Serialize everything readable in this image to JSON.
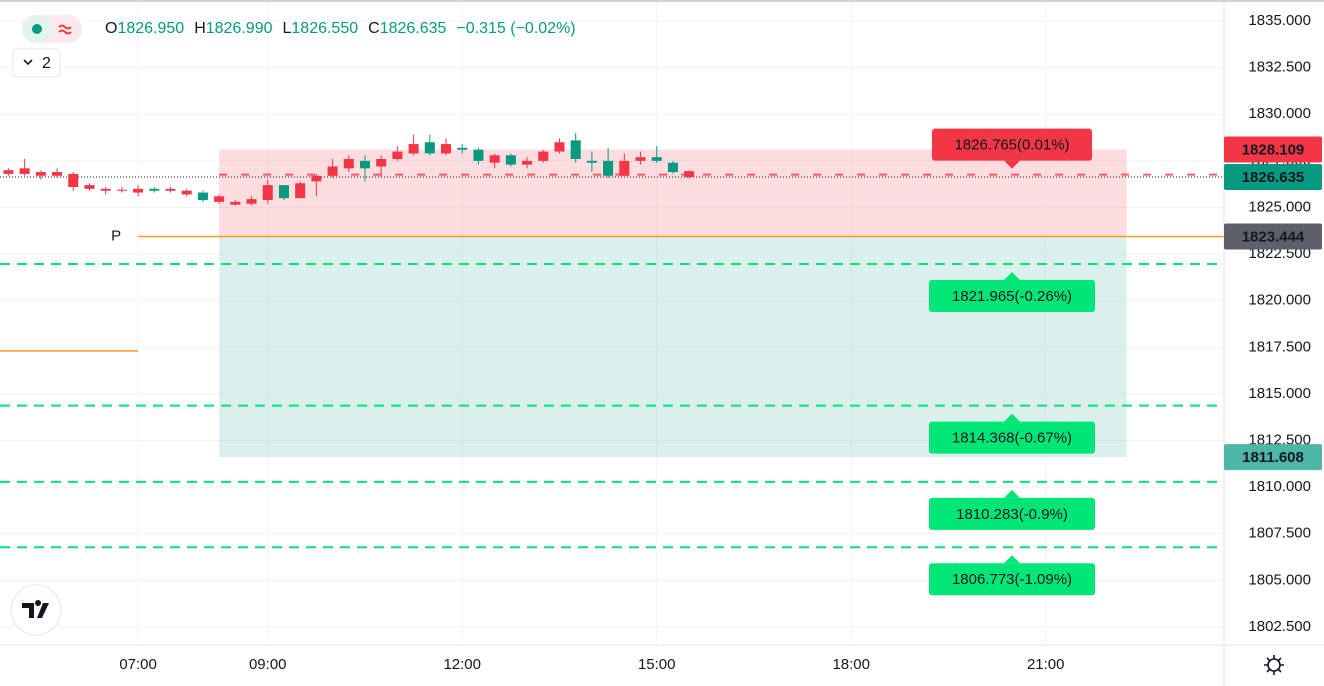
{
  "chart_data": {
    "type": "candlestick",
    "header": {
      "labels": [
        "O",
        "H",
        "L",
        "C"
      ],
      "value_labels": [
        "1826.950",
        "1826.990",
        "1826.550",
        "1826.635"
      ],
      "change": "−0.315 (−0.02%)",
      "interval": "2"
    },
    "x": [
      5,
      5.25,
      5.5,
      5.75,
      6,
      6.25,
      6.5,
      6.75,
      7,
      7.25,
      7.5,
      7.75,
      8,
      8.25,
      8.5,
      8.75,
      9,
      9.25,
      9.5,
      9.75,
      10,
      10.25,
      10.5,
      10.75,
      11,
      11.25,
      11.5,
      11.75,
      12,
      12.25,
      12.5,
      12.75,
      13,
      13.25,
      13.5,
      13.75,
      14,
      14.25,
      14.5,
      14.75,
      15,
      15.25,
      15.5
    ],
    "open": [
      1827.0,
      1827.1,
      1826.9,
      1826.9,
      1826.8,
      1826.2,
      1826.0,
      1825.95,
      1826.0,
      1825.9,
      1826.0,
      1825.9,
      1825.4,
      1825.6,
      1825.3,
      1825.45,
      1826.2,
      1825.5,
      1826.3,
      1826.7,
      1827.2,
      1827.6,
      1827.1,
      1827.6,
      1828.0,
      1828.4,
      1827.9,
      1828.4,
      1828.1,
      1827.5,
      1827.8,
      1827.3,
      1827.5,
      1828.0,
      1828.5,
      1827.6,
      1827.4,
      1826.7,
      1827.5,
      1827.7,
      1827.5,
      1826.9,
      1826.95
    ],
    "high": [
      1827.1,
      1827.6,
      1827.0,
      1827.1,
      1826.9,
      1826.3,
      1826.1,
      1826.1,
      1826.2,
      1826.1,
      1826.1,
      1826.0,
      1825.9,
      1825.7,
      1825.4,
      1825.6,
      1826.5,
      1826.2,
      1826.4,
      1826.8,
      1827.6,
      1827.8,
      1827.8,
      1827.8,
      1828.3,
      1828.9,
      1828.9,
      1828.7,
      1828.4,
      1828.2,
      1827.9,
      1827.9,
      1827.7,
      1828.1,
      1828.7,
      1829.0,
      1828.0,
      1828.2,
      1827.9,
      1828.0,
      1828.3,
      1827.5,
      1826.99
    ],
    "low": [
      1826.7,
      1826.7,
      1826.5,
      1826.6,
      1825.9,
      1825.9,
      1825.7,
      1825.8,
      1825.6,
      1825.8,
      1825.8,
      1825.6,
      1825.3,
      1825.2,
      1825.1,
      1825.1,
      1825.2,
      1825.4,
      1825.5,
      1825.6,
      1826.6,
      1826.9,
      1826.4,
      1826.6,
      1827.5,
      1827.8,
      1827.8,
      1827.8,
      1827.9,
      1827.3,
      1827.1,
      1827.2,
      1827.1,
      1827.4,
      1827.9,
      1827.4,
      1826.9,
      1826.6,
      1826.7,
      1827.3,
      1827.4,
      1826.8,
      1826.55
    ],
    "close": [
      1826.8,
      1826.8,
      1826.7,
      1826.7,
      1826.1,
      1826.0,
      1825.9,
      1825.9,
      1825.8,
      1826.0,
      1825.9,
      1825.7,
      1825.8,
      1825.3,
      1825.15,
      1825.2,
      1825.4,
      1826.2,
      1825.5,
      1826.4,
      1826.7,
      1827.1,
      1827.5,
      1827.2,
      1827.6,
      1827.9,
      1828.5,
      1827.9,
      1828.2,
      1828.1,
      1827.4,
      1827.8,
      1827.3,
      1827.5,
      1828.0,
      1828.6,
      1827.5,
      1827.5,
      1826.7,
      1827.5,
      1827.7,
      1827.4,
      1826.635
    ],
    "up_color": "#089981",
    "down_color": "#f23645",
    "xlim": [
      4.87,
      23.75
    ],
    "ylim": [
      1801.53,
      1836.13
    ],
    "xticks": [
      {
        "value": 7,
        "label": "07:00"
      },
      {
        "value": 9,
        "label": "09:00"
      },
      {
        "value": 12,
        "label": "12:00"
      },
      {
        "value": 15,
        "label": "15:00"
      },
      {
        "value": 18,
        "label": "18:00"
      },
      {
        "value": 21,
        "label": "21:00"
      }
    ],
    "yticks": [
      {
        "value": 1802.5,
        "label": "1802.500"
      },
      {
        "value": 1805,
        "label": "1805.000"
      },
      {
        "value": 1807.5,
        "label": "1807.500"
      },
      {
        "value": 1810,
        "label": "1810.000"
      },
      {
        "value": 1812.5,
        "label": "1812.500"
      },
      {
        "value": 1815,
        "label": "1815.000"
      },
      {
        "value": 1817.5,
        "label": "1817.500"
      },
      {
        "value": 1820,
        "label": "1820.000"
      },
      {
        "value": 1822.5,
        "label": "1822.500"
      },
      {
        "value": 1825,
        "label": "1825.000"
      },
      {
        "value": 1827.5,
        "label": "1827.500"
      },
      {
        "value": 1830,
        "label": "1830.000"
      },
      {
        "value": 1832.5,
        "label": "1832.500"
      },
      {
        "value": 1835,
        "label": "1835.000"
      }
    ],
    "grid": true,
    "position": {
      "start": 8.25,
      "end": 22.25,
      "stop": 1828.109,
      "entry": 1823.444,
      "target": 1811.608,
      "stop_color": "#f23645",
      "entry_color": "#5d606b",
      "target_color": "#4db6a4"
    },
    "pivot": {
      "label": "P",
      "start": 7,
      "color": "#f59a23",
      "previous": 1817.3
    },
    "levels": [
      {
        "value": 1826.765,
        "label": "1826.765(0.01%)",
        "color": "#f23645",
        "start": 8.25
      },
      {
        "value": 1821.965,
        "label": "1821.965(-0.26%)",
        "color": "#00e676",
        "start": 4.87
      },
      {
        "value": 1814.368,
        "label": "1814.368(-0.67%)",
        "color": "#00e676",
        "start": 4.87
      },
      {
        "value": 1810.283,
        "label": "1810.283(-0.9%)",
        "color": "#00e676",
        "start": 4.87
      },
      {
        "value": 1806.773,
        "label": "1806.773(-1.09%)",
        "color": "#00e676",
        "start": 4.87
      }
    ]
  }
}
